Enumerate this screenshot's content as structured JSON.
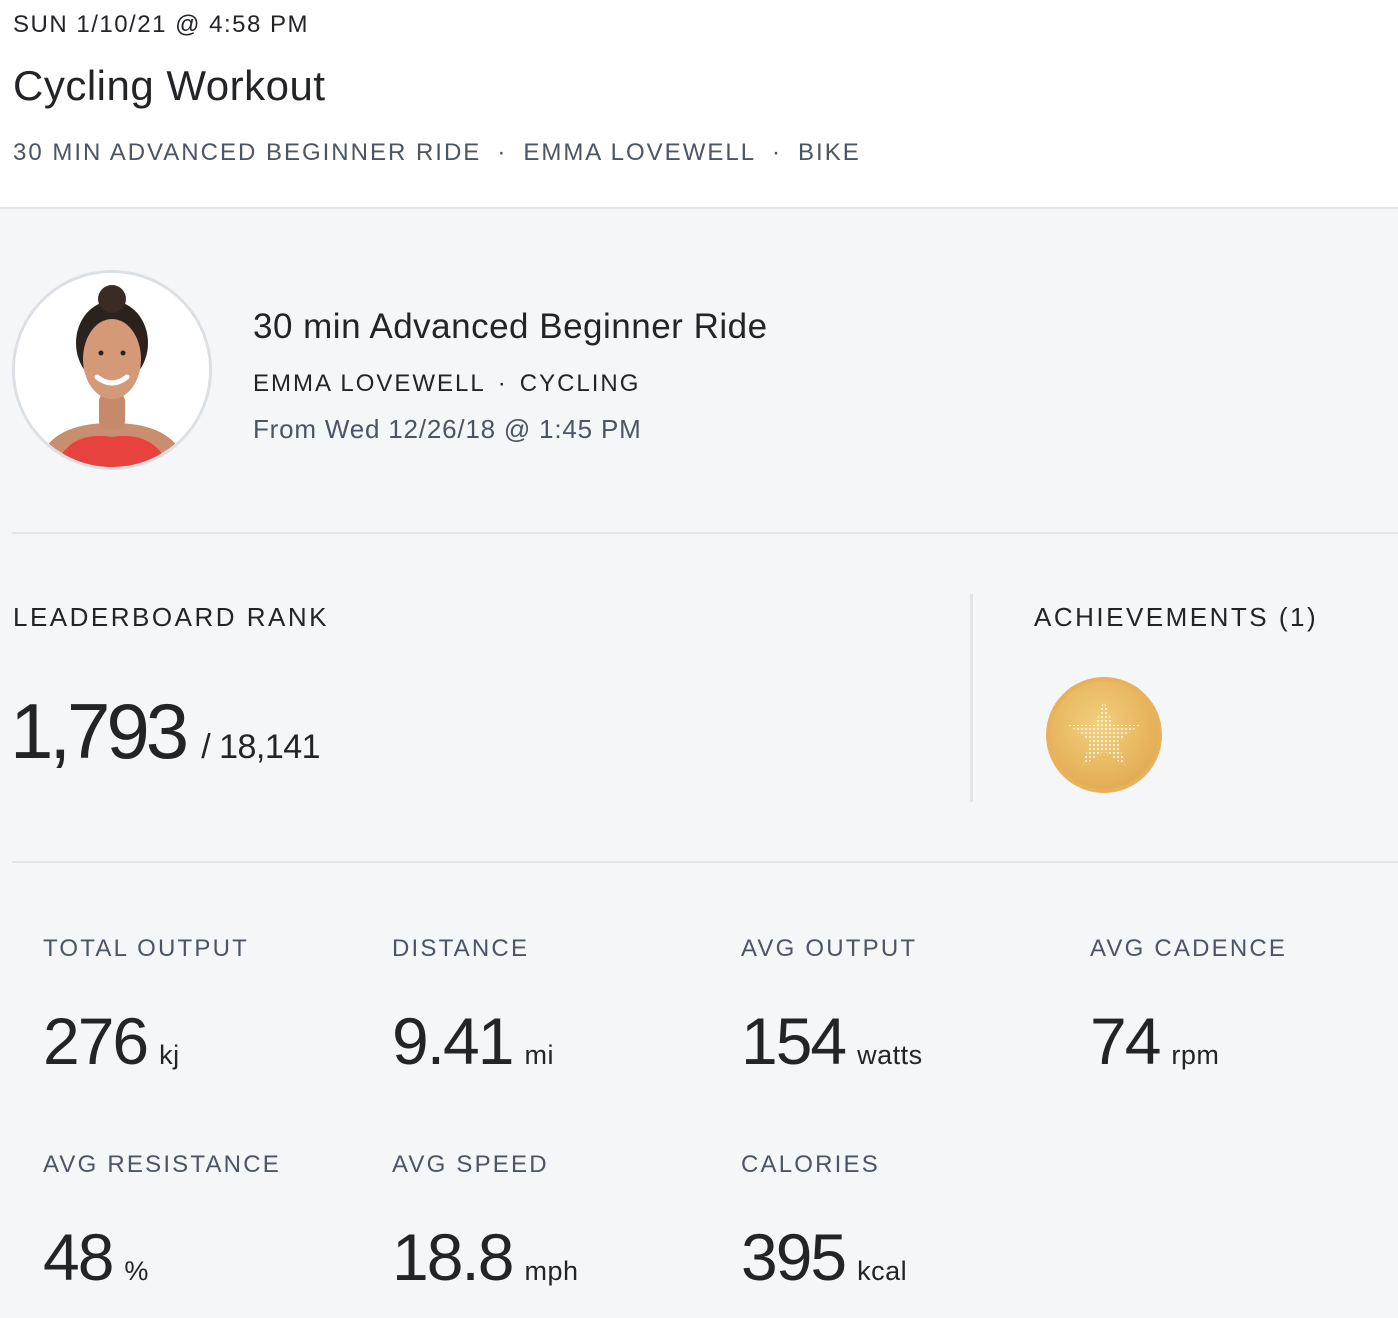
{
  "header": {
    "date": "SUN 1/10/21 @ 4:58 PM",
    "title": "Cycling Workout",
    "meta": [
      "30 MIN ADVANCED BEGINNER RIDE",
      "EMMA LOVEWELL",
      "BIKE"
    ],
    "separator": "·"
  },
  "class_info": {
    "title": "30 min Advanced Beginner Ride",
    "instructor": "EMMA LOVEWELL",
    "discipline": "CYCLING",
    "separator": "·",
    "from": "From Wed 12/26/18 @ 1:45 PM"
  },
  "leaderboard": {
    "label": "LEADERBOARD RANK",
    "rank": "1,793",
    "total": "/ 18,141"
  },
  "achievements": {
    "label": "ACHIEVEMENTS (1)",
    "items": [
      {
        "icon": "star-medal-icon",
        "color": "#e9b55a"
      }
    ]
  },
  "stats": [
    {
      "label": "TOTAL OUTPUT",
      "value": "276",
      "unit": "kj"
    },
    {
      "label": "DISTANCE",
      "value": "9.41",
      "unit": "mi"
    },
    {
      "label": "AVG OUTPUT",
      "value": "154",
      "unit": "watts"
    },
    {
      "label": "AVG CADENCE",
      "value": "74",
      "unit": "rpm"
    },
    {
      "label": "AVG RESISTANCE",
      "value": "48",
      "unit": "%"
    },
    {
      "label": "AVG SPEED",
      "value": "18.8",
      "unit": "mph"
    },
    {
      "label": "CALORIES",
      "value": "395",
      "unit": "kcal"
    }
  ]
}
